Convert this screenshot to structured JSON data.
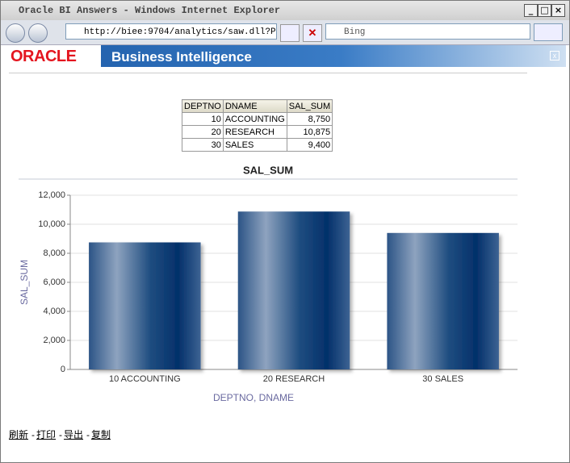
{
  "window": {
    "title": "Oracle BI Answers - Windows Internet Explorer",
    "url": "http://biee:9704/analytics/saw.dll?Pr",
    "search": "Bing"
  },
  "header": {
    "brand": "ORACLE",
    "product": "Business Intelligence"
  },
  "table": {
    "columns": [
      "DEPTNO",
      "DNAME",
      "SAL_SUM"
    ],
    "rows": [
      [
        "10",
        "ACCOUNTING",
        "8,750"
      ],
      [
        "20",
        "RESEARCH",
        "10,875"
      ],
      [
        "30",
        "SALES",
        "9,400"
      ]
    ]
  },
  "chart_data": {
    "type": "bar",
    "title": "SAL_SUM",
    "x_label": "DEPTNO, DNAME",
    "y_label": "SAL_SUM",
    "categories": [
      "10 ACCOUNTING",
      "20 RESEARCH",
      "30 SALES"
    ],
    "values": [
      8750,
      10875,
      9400
    ],
    "color": "#1f4d80",
    "ylim": [
      0,
      12000
    ],
    "yticks": [
      0,
      {
        "value": 2000,
        "label": "2,000"
      },
      {
        "value": 4000,
        "label": "4,000"
      },
      {
        "value": 6000,
        "label": "6,000"
      },
      {
        "value": 8000,
        "label": "8,000"
      },
      {
        "value": 10000,
        "label": "10,000"
      },
      {
        "value": 12000,
        "label": "12,000"
      }
    ],
    "grid": true
  },
  "links": {
    "items": [
      "刷新",
      "打印",
      "导出",
      "复制"
    ],
    "separator": "-"
  }
}
